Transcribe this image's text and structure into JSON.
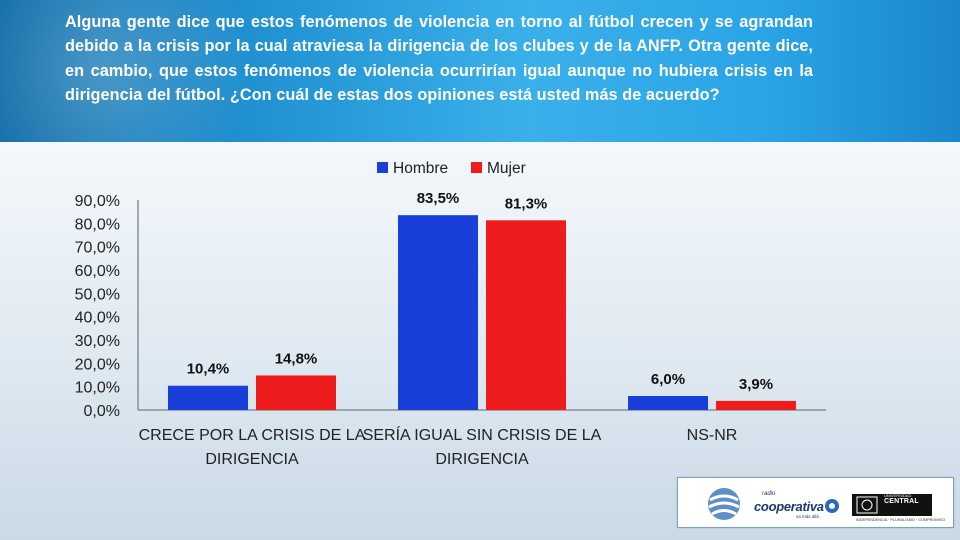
{
  "header": {
    "question": "Alguna gente dice que estos fenómenos de violencia en torno al fútbol crecen y se agrandan debido a la crisis por la cual atraviesa la dirigencia de los clubes y de la ANFP. Otra gente dice, en cambio, que estos fenómenos de violencia ocurrirían igual aunque no hubiera crisis en la dirigencia del fútbol. ¿Con cuál de estas dos opiniones está usted más de acuerdo?"
  },
  "chart_data": {
    "type": "bar",
    "categories": [
      [
        "CRECE POR LA CRISIS DE LA",
        "DIRIGENCIA"
      ],
      [
        "SERÍA IGUAL SIN CRISIS DE LA",
        "DIRIGENCIA"
      ],
      [
        "NS-NR"
      ]
    ],
    "series": [
      {
        "name": "Hombre",
        "values": [
          10.4,
          83.5,
          6.0
        ],
        "labels": [
          "10,4%",
          "83,5%",
          "6,0%"
        ],
        "color": "#1a3fd8"
      },
      {
        "name": "Mujer",
        "values": [
          14.8,
          81.3,
          3.9
        ],
        "labels": [
          "14,8%",
          "81,3%",
          "3,9%"
        ],
        "color": "#ee1c1c"
      }
    ],
    "yticks": [
      {
        "value": 90,
        "label": "90,0%"
      },
      {
        "value": 80,
        "label": "80,0%"
      },
      {
        "value": 70,
        "label": "70,0%"
      },
      {
        "value": 60,
        "label": "60,0%"
      },
      {
        "value": 50,
        "label": "50,0%"
      },
      {
        "value": 40,
        "label": "40,0%"
      },
      {
        "value": 30,
        "label": "30,0%"
      },
      {
        "value": 20,
        "label": "20,0%"
      },
      {
        "value": 10,
        "label": "10,0%"
      },
      {
        "value": 0,
        "label": "0,0%"
      }
    ],
    "ylim": [
      0,
      90
    ],
    "grid": false,
    "legend_position": "top-center"
  },
  "logos": {
    "cooperativa_small": "radio",
    "cooperativa_name": "cooperativa",
    "cooperativa_tagline": "va más allá",
    "university_name": "CENTRAL",
    "university_header": "UNIVERSIDAD",
    "university_motto": "INDEPENDENCIA · PLURALISMO · COMPROMISO"
  }
}
